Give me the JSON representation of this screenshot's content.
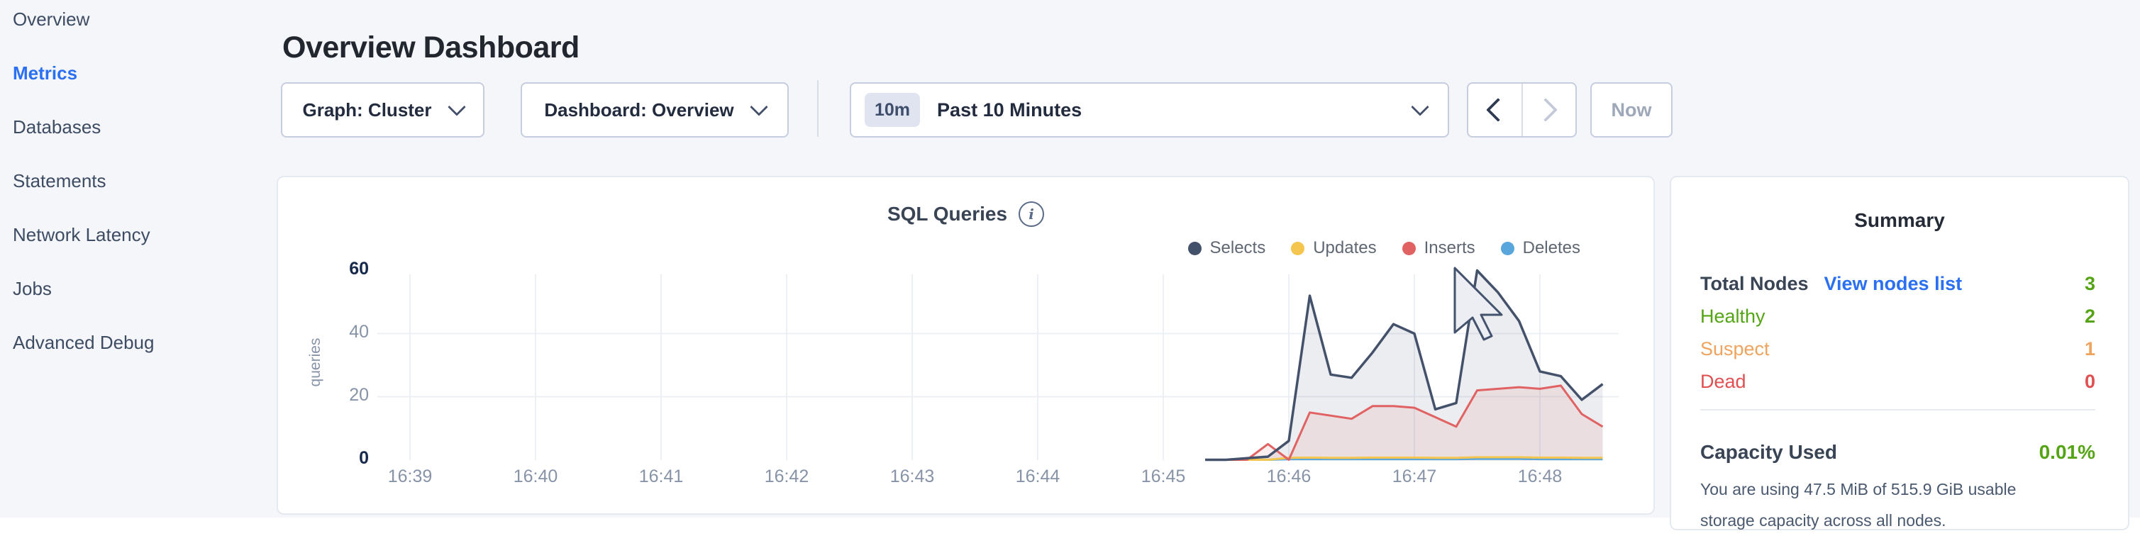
{
  "sidebar": {
    "items": [
      {
        "label": "Overview",
        "active": false
      },
      {
        "label": "Metrics",
        "active": true
      },
      {
        "label": "Databases",
        "active": false
      },
      {
        "label": "Statements",
        "active": false
      },
      {
        "label": "Network Latency",
        "active": false
      },
      {
        "label": "Jobs",
        "active": false
      },
      {
        "label": "Advanced Debug",
        "active": false
      }
    ]
  },
  "header": {
    "title": "Overview Dashboard"
  },
  "controls": {
    "graph_dropdown": {
      "label": "Graph: Cluster"
    },
    "dashboard_dropdown": {
      "label": "Dashboard: Overview"
    },
    "time_selector": {
      "badge": "10m",
      "label": "Past 10 Minutes"
    },
    "now_button": {
      "label": "Now"
    }
  },
  "chart_data": {
    "type": "area",
    "title": "SQL Queries",
    "ylabel": "queries",
    "ylim": [
      0,
      60
    ],
    "grid": true,
    "legend_position": "top-right",
    "x_ticks": [
      "16:39",
      "16:40",
      "16:41",
      "16:42",
      "16:43",
      "16:44",
      "16:45",
      "16:46",
      "16:47",
      "16:48"
    ],
    "y_ticks": [
      {
        "label": "60",
        "v": 60,
        "emph": true
      },
      {
        "label": "40",
        "v": 40,
        "emph": false
      },
      {
        "label": "20",
        "v": 20,
        "emph": false
      },
      {
        "label": "0",
        "v": 0,
        "emph": true
      }
    ],
    "t_seconds_from_1639": [
      380,
      390,
      400,
      410,
      420,
      430,
      440,
      450,
      460,
      470,
      480,
      490,
      500,
      510,
      520,
      530,
      540,
      550,
      560,
      570
    ],
    "series": [
      {
        "name": "Selects",
        "color": "#44516A",
        "fill": "rgba(68,81,106,0.10)",
        "values": [
          0,
          0,
          0.5,
          1,
          6,
          52,
          27,
          26,
          34,
          43,
          40,
          16,
          18,
          60,
          53,
          44,
          28,
          26.5,
          19,
          24
        ]
      },
      {
        "name": "Updates",
        "color": "#F5C64F",
        "fill": "none",
        "values": [
          0,
          0,
          0,
          0,
          0.6,
          0.7,
          0.6,
          0.6,
          0.7,
          0.7,
          0.7,
          0.6,
          0.6,
          0.8,
          0.8,
          0.8,
          0.7,
          0.7,
          0.6,
          0.6
        ]
      },
      {
        "name": "Inserts",
        "color": "#E16262",
        "fill": "rgba(225,98,98,0.10)",
        "values": [
          0,
          0,
          0,
          5,
          0,
          15,
          14,
          13,
          17,
          17,
          16.5,
          13.5,
          10.5,
          22,
          22.5,
          23,
          22.5,
          23.5,
          14.5,
          10.5
        ]
      },
      {
        "name": "Deletes",
        "color": "#58A6DC",
        "fill": "none",
        "values": [
          0,
          0,
          0,
          0,
          0.2,
          0.2,
          0.2,
          0.2,
          0.2,
          0.2,
          0.2,
          0.2,
          0.2,
          0.3,
          0.3,
          0.3,
          0.2,
          0.2,
          0.2,
          0.2
        ]
      }
    ]
  },
  "summary": {
    "title": "Summary",
    "rows": [
      {
        "label": "Total Nodes",
        "link": "View nodes list",
        "value": "3",
        "color": "green"
      },
      {
        "label": "Healthy",
        "value": "2",
        "color": "green"
      },
      {
        "label": "Suspect",
        "value": "1",
        "color": "orange"
      },
      {
        "label": "Dead",
        "value": "0",
        "color": "red"
      }
    ],
    "capacity": {
      "label": "Capacity Used",
      "value": "0.01%",
      "description": "You are using 47.5 MiB of 515.9 GiB usable storage capacity across all nodes."
    }
  },
  "colors": {
    "accent_blue": "#2B6FF2",
    "green": "#55A415",
    "orange": "#EEA45E",
    "red": "#E15050",
    "navy_text": "#394455",
    "grid": "#ECEFF4"
  }
}
